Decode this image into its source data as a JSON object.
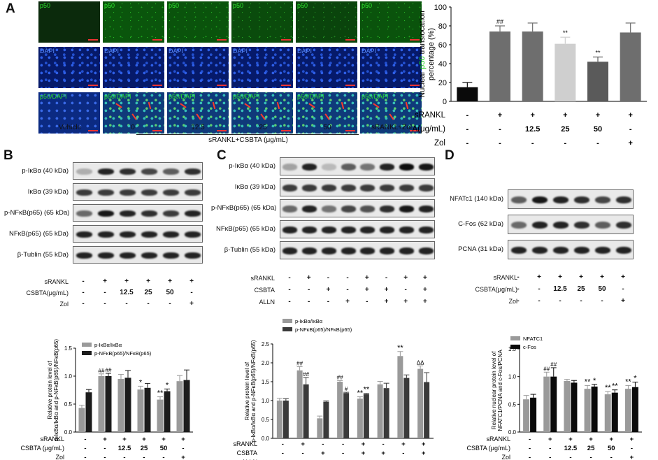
{
  "panels": {
    "A": "A",
    "B": "B",
    "C": "C",
    "D": "D"
  },
  "micrographs": {
    "row_labels": [
      "p50",
      "DAPI",
      "p50/DAPI"
    ],
    "columns": [
      "Vehicle",
      "0",
      "12.5",
      "25",
      "50",
      "sRANKL+Zol"
    ],
    "group_caption": "sRANKL+CSBTA (μg/mL)"
  },
  "blots": {
    "B": [
      "p-IκBα (40 kDa)",
      "IκBα (39 kDa)",
      "p-NFκB(p65) (65 kDa)",
      "NFκB(p65) (65 kDa)",
      "β-Tublin (55 kDa)"
    ],
    "C": [
      "p-IκBα (40 kDa)",
      "IκBα (39 kDa)",
      "p-NFκB(p65) (65 kDa)",
      "NFκB(p65) (65 kDa)",
      "β-Tublin (55 kDa)"
    ],
    "D": [
      "NFATc1 (140 kDa)",
      "C-Fos (62 kDa)",
      "PCNA (31 kDa)"
    ]
  },
  "treatments": {
    "B_top": [
      {
        "label": "sRANKL",
        "signs": [
          "-",
          "+",
          "+",
          "+",
          "+",
          "+"
        ]
      },
      {
        "label": "CSBTA(μg/mL)",
        "signs": [
          "-",
          "-",
          "12.5",
          "25",
          "50",
          "-"
        ]
      },
      {
        "label": "Zol",
        "signs": [
          "-",
          "-",
          "-",
          "-",
          "-",
          "+"
        ]
      }
    ],
    "C_top": [
      {
        "label": "sRANKL",
        "signs": [
          "-",
          "+",
          "-",
          "-",
          "+",
          "-",
          "+",
          "+"
        ]
      },
      {
        "label": "CSBTA",
        "signs": [
          "-",
          "-",
          "+",
          "-",
          "+",
          "+",
          "-",
          "+"
        ]
      },
      {
        "label": "ALLN",
        "signs": [
          "-",
          "-",
          "-",
          "+",
          "-",
          "+",
          "+",
          "+"
        ]
      }
    ],
    "D_top": [
      {
        "label": "sRANKL",
        "signs": [
          "-",
          "+",
          "+",
          "+",
          "+",
          "+"
        ]
      },
      {
        "label": "CSBTA(μg/mL)",
        "signs": [
          "-",
          "-",
          "12.5",
          "25",
          "50",
          "-"
        ]
      },
      {
        "label": "Zol",
        "signs": [
          "-",
          "-",
          "-",
          "-",
          "-",
          "+"
        ]
      }
    ]
  },
  "chart_data": [
    {
      "id": "A",
      "type": "bar",
      "ylabel_prefix": "Nuclear ",
      "ylabel_highlight": "p50",
      "ylabel_suffix": " translocation",
      "ylabel_line2": "percentage (%)",
      "ylim": [
        0,
        100
      ],
      "yticks": [
        0,
        20,
        40,
        60,
        80,
        100
      ],
      "colors": [
        "#0a0a0a",
        "#6e6e6e",
        "#6e6e6e",
        "#cfcfcf",
        "#5a5a5a",
        "#6e6e6e"
      ],
      "accent": "#12c412",
      "series": [
        {
          "values": [
            15,
            74,
            74,
            61,
            42,
            73
          ],
          "errors": [
            5,
            6,
            9,
            7,
            5,
            10
          ],
          "marks": [
            "",
            "##",
            "",
            "**",
            "**",
            ""
          ]
        }
      ],
      "rows": [
        {
          "label": "sRANKL",
          "signs": [
            "-",
            "+",
            "+",
            "+",
            "+",
            "+"
          ]
        },
        {
          "label": "CSBTA(μg/mL)",
          "signs": [
            "-",
            "-",
            "12.5",
            "25",
            "50",
            "-"
          ]
        },
        {
          "label": "Zol",
          "signs": [
            "-",
            "-",
            "-",
            "-",
            "-",
            "+"
          ]
        }
      ]
    },
    {
      "id": "B",
      "type": "bar",
      "ylabel": "Relative protein level of p-IκBα/IκBα and p-NFκB(p65)/NFκB(p65)",
      "ylim": [
        0,
        1.5
      ],
      "yticks": [
        0.0,
        0.5,
        1.0,
        1.5
      ],
      "ytick_labels": [
        "0.0",
        "0.5",
        "1.0",
        "1.5"
      ],
      "series": [
        {
          "name": "p-IκBα/IκBα",
          "color": "#9a9a9a",
          "values": [
            0.43,
            1.0,
            0.95,
            0.76,
            0.58,
            0.91
          ],
          "errors": [
            0.05,
            0.04,
            0.08,
            0.06,
            0.05,
            0.1
          ],
          "marks": [
            "",
            "##",
            "",
            "*",
            "**",
            ""
          ]
        },
        {
          "name": "p-NFκB(p65)/NFκB(p65)",
          "color": "#1c1c1c",
          "values": [
            0.71,
            1.0,
            0.97,
            0.79,
            0.73,
            0.93
          ],
          "errors": [
            0.05,
            0.05,
            0.13,
            0.08,
            0.04,
            0.18
          ],
          "marks": [
            "",
            "##",
            "",
            "",
            "*",
            ""
          ]
        }
      ],
      "rows": [
        {
          "label": "sRANKL",
          "signs": [
            "-",
            "+",
            "+",
            "+",
            "+",
            "+"
          ]
        },
        {
          "label": "CSBTA (μg/mL)",
          "signs": [
            "-",
            "-",
            "12.5",
            "25",
            "50",
            "-"
          ]
        },
        {
          "label": "Zol",
          "signs": [
            "-",
            "-",
            "-",
            "-",
            "-",
            "+"
          ]
        }
      ]
    },
    {
      "id": "C",
      "type": "bar",
      "ylabel": "Relative protein level of p-IκBα/IκBα and p-NFκB(p65)/NFκB(p65)",
      "ylim": [
        0,
        2.5
      ],
      "yticks": [
        0.0,
        0.5,
        1.0,
        1.5,
        2.0,
        2.5
      ],
      "ytick_labels": [
        "0.0",
        "0.5",
        "1.0",
        "1.5",
        "2.0",
        "2.5"
      ],
      "series": [
        {
          "name": "p-IκBα/IκBα",
          "color": "#9a9a9a",
          "values": [
            1.0,
            1.8,
            0.53,
            1.5,
            1.05,
            1.43,
            2.18,
            1.84
          ],
          "errors": [
            0.06,
            0.1,
            0.06,
            0.03,
            0.05,
            0.08,
            0.12,
            0.08
          ],
          "marks": [
            "",
            "##",
            "",
            "##",
            "**",
            "",
            "**",
            "ΔΔ"
          ]
        },
        {
          "name": "p-NFκB(p65)/NFκB(p65)",
          "color": "#3a3a3a",
          "values": [
            1.0,
            1.43,
            0.97,
            1.2,
            1.17,
            1.33,
            1.6,
            1.49
          ],
          "errors": [
            0.05,
            0.18,
            0.02,
            0.02,
            0.02,
            0.13,
            0.08,
            0.25
          ],
          "marks": [
            "",
            "##",
            "",
            "#",
            "**",
            "",
            "",
            ""
          ]
        }
      ],
      "rows": [
        {
          "label": "sRANKL",
          "signs": [
            "-",
            "+",
            "-",
            "-",
            "+",
            "-",
            "+",
            "+"
          ]
        },
        {
          "label": "CSBTA",
          "signs": [
            "-",
            "-",
            "+",
            "-",
            "+",
            "+",
            "-",
            "+"
          ]
        },
        {
          "label": "ALLN",
          "signs": [
            "-",
            "-",
            "-",
            "+",
            "-",
            "+",
            "+",
            "+"
          ]
        }
      ]
    },
    {
      "id": "D",
      "type": "bar",
      "ylabel": "Relative nuclear protein level of NFATC1/PCNA and c-Fos/PCNA",
      "ylim": [
        0,
        1.5
      ],
      "yticks": [
        0.0,
        0.5,
        1.0,
        1.5
      ],
      "ytick_labels": [
        "0.0",
        "0.5",
        "1.0",
        "1.5"
      ],
      "series": [
        {
          "name": "NFATC1",
          "color": "#9a9a9a",
          "values": [
            0.59,
            1.0,
            0.92,
            0.78,
            0.68,
            0.78
          ],
          "errors": [
            0.07,
            0.08,
            0.03,
            0.06,
            0.05,
            0.06
          ],
          "marks": [
            "",
            "##",
            "",
            "**",
            "**",
            "**"
          ]
        },
        {
          "name": "c-Fos",
          "color": "#0a0a0a",
          "values": [
            0.62,
            1.0,
            0.89,
            0.82,
            0.71,
            0.81
          ],
          "errors": [
            0.06,
            0.16,
            0.04,
            0.04,
            0.05,
            0.09
          ],
          "marks": [
            "",
            "##",
            "",
            "*",
            "**",
            "*"
          ]
        }
      ],
      "rows": [
        {
          "label": "sRANKL",
          "signs": [
            "-",
            "+",
            "+",
            "+",
            "+",
            "+"
          ]
        },
        {
          "label": "CSBTA (μg/mL)",
          "signs": [
            "-",
            "-",
            "12.5",
            "25",
            "50",
            "-"
          ]
        },
        {
          "label": "Zol",
          "signs": [
            "-",
            "-",
            "-",
            "-",
            "-",
            "+"
          ]
        }
      ]
    }
  ]
}
